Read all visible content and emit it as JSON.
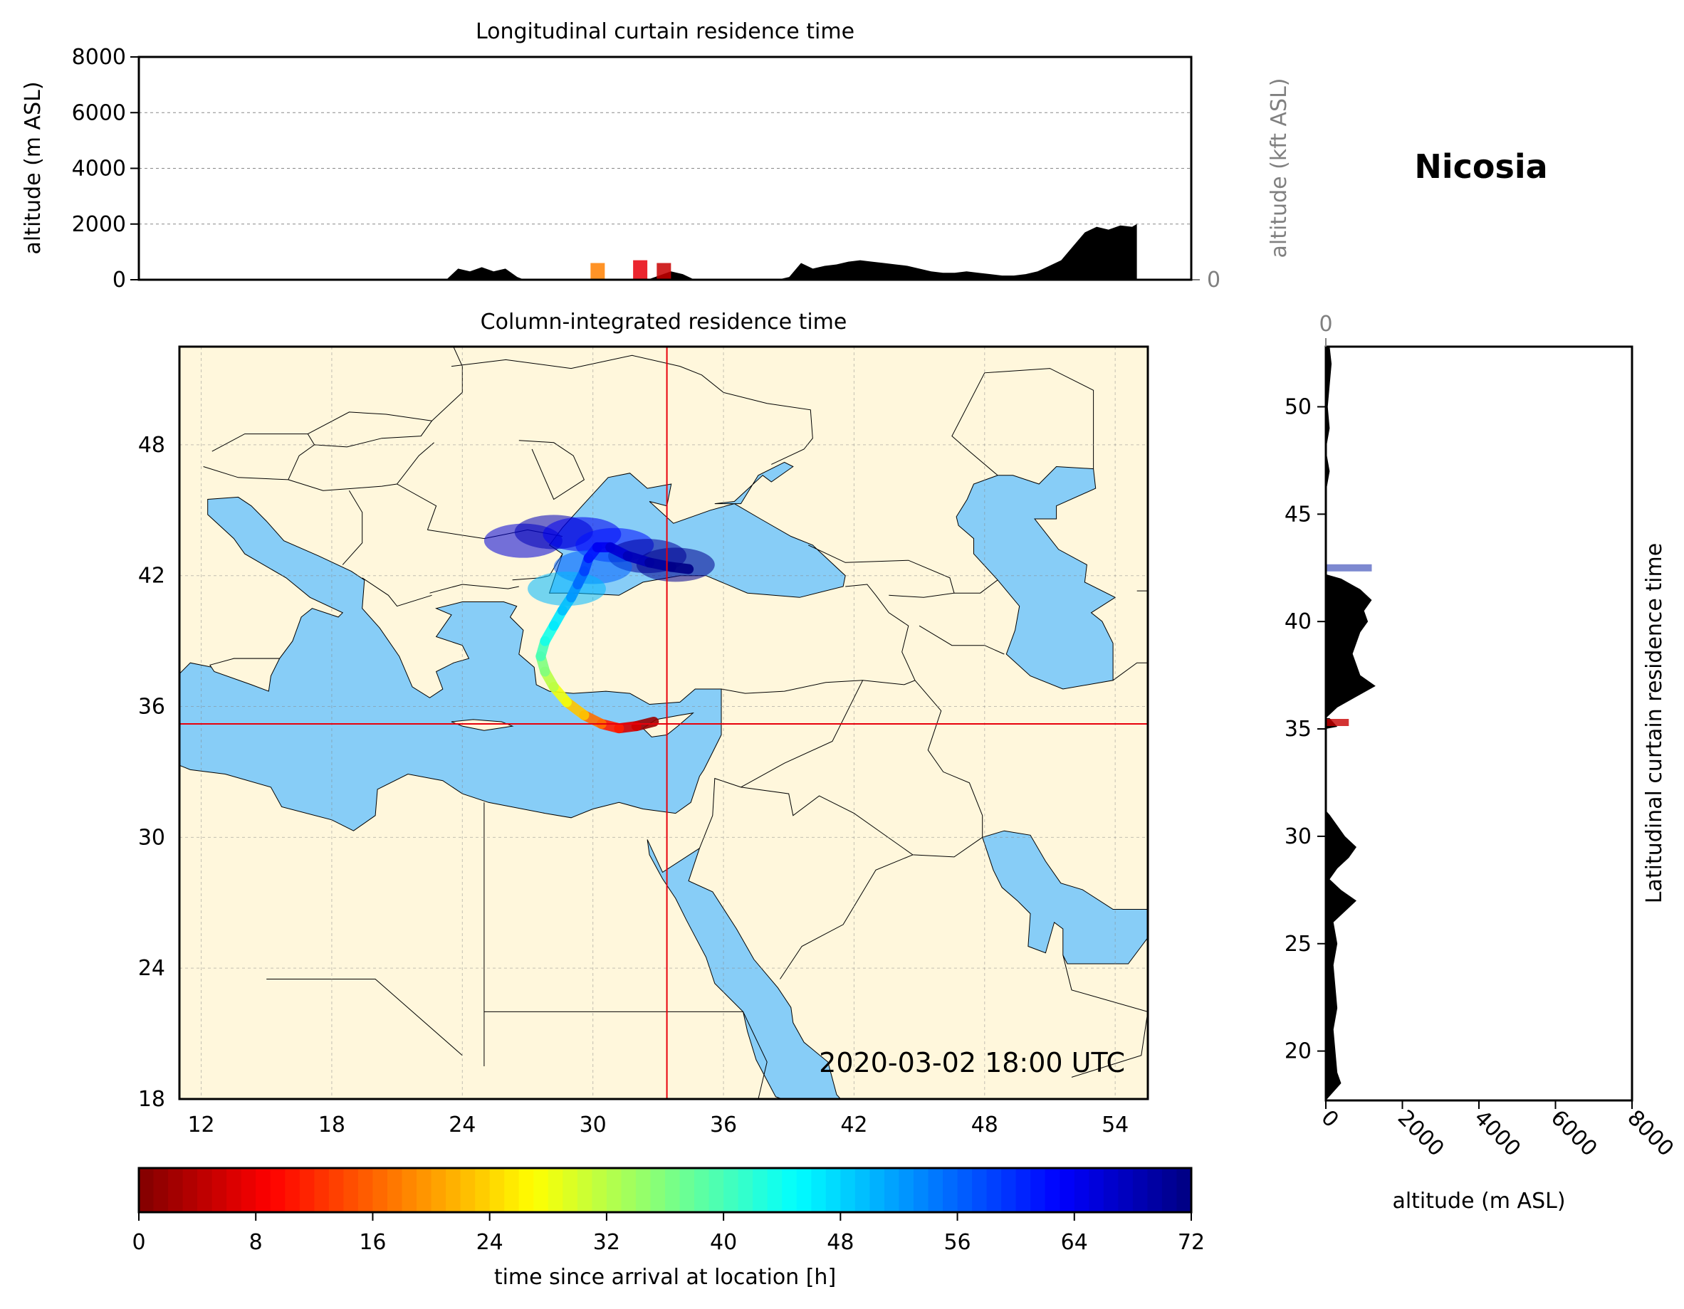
{
  "station": "Nicosia",
  "timestamp": "2020-03-02 18:00 UTC",
  "colors": {
    "land": "#fff7dc",
    "sea": "#87cdf7",
    "terrain": "#000000",
    "crosshair": "#e8000b",
    "grid": "#888888"
  },
  "location": {
    "lon": 33.4,
    "lat": 35.2
  },
  "chart_data": [
    {
      "id": "longitudinal",
      "type": "area",
      "title": "Longitudinal curtain residence time",
      "ylabel": "altitude (m ASL)",
      "ylabel_right": "altitude (kft ASL)",
      "xlim": [
        11,
        55.5
      ],
      "ylim": [
        0,
        8000
      ],
      "yticks": [
        0,
        2000,
        4000,
        6000,
        8000
      ],
      "yticks_right": [
        0,
        50,
        100
      ],
      "terrain_profile": {
        "x": [
          11,
          23,
          24,
          24.5,
          25,
          25.5,
          26,
          26.5,
          27,
          27.3,
          27.5,
          28,
          28.5,
          29,
          29.5,
          30,
          30.5,
          31,
          31.5,
          32,
          32.5,
          33,
          33.5,
          34,
          34.5,
          35,
          35.2,
          35.5,
          36,
          36.5,
          37,
          37.5,
          38,
          38.5,
          39,
          39.5,
          40,
          40.5,
          41,
          41.5,
          42,
          42.5,
          43,
          43.5,
          44,
          44.5,
          45,
          45.5,
          46,
          46.5,
          47,
          47.5,
          48,
          48.5,
          49,
          49.5,
          50,
          50.5,
          51,
          51.5,
          52,
          52.5,
          53,
          53.2,
          53.2
        ],
        "y": [
          0,
          0,
          0,
          400,
          300,
          450,
          300,
          400,
          100,
          0,
          0,
          0,
          0,
          0,
          0,
          0,
          0,
          0,
          0,
          0,
          0,
          150,
          300,
          200,
          0,
          0,
          0,
          0,
          0,
          0,
          0,
          0,
          0,
          100,
          600,
          400,
          500,
          550,
          650,
          700,
          650,
          600,
          550,
          500,
          400,
          300,
          250,
          250,
          300,
          250,
          200,
          150,
          150,
          200,
          300,
          500,
          700,
          1200,
          1700,
          1900,
          1800,
          1950,
          1900,
          2000,
          0
        ]
      },
      "residence_markers": [
        {
          "lon": 30.4,
          "height_m": 600,
          "color": "#ff8000"
        },
        {
          "lon": 32.2,
          "height_m": 700,
          "color": "#e8000b"
        },
        {
          "lon": 33.2,
          "height_m": 600,
          "color": "#c80000"
        }
      ]
    },
    {
      "id": "column",
      "type": "heatmap",
      "title": "Column-integrated residence time",
      "xlim": [
        11,
        55.5
      ],
      "ylim": [
        18,
        52.5
      ],
      "xticks": [
        12,
        18,
        24,
        30,
        36,
        42,
        48,
        54
      ],
      "yticks": [
        18,
        24,
        30,
        36,
        42,
        48
      ],
      "plume_track": {
        "lon": [
          32.8,
          32.0,
          31.2,
          30.4,
          29.6,
          28.8,
          28.2,
          27.8,
          27.6,
          27.8,
          28.2,
          28.6,
          29.0,
          29.3,
          29.6,
          29.8,
          30.2,
          30.8,
          31.6,
          32.6,
          33.6,
          34.4
        ],
        "lat": [
          35.3,
          35.1,
          35.0,
          35.2,
          35.6,
          36.2,
          36.9,
          37.6,
          38.3,
          39.0,
          39.7,
          40.4,
          41.0,
          41.6,
          42.2,
          42.8,
          43.3,
          43.3,
          42.9,
          42.6,
          42.4,
          42.3
        ],
        "hours": [
          0,
          4,
          8,
          14,
          20,
          26,
          30,
          34,
          38,
          42,
          45,
          48,
          51,
          54,
          57,
          60,
          63,
          65,
          67,
          69,
          71,
          72
        ]
      },
      "plume_cloud": [
        {
          "lon": 26.8,
          "lat": 43.6,
          "hours": 66
        },
        {
          "lon": 28.2,
          "lat": 44.0,
          "hours": 68
        },
        {
          "lon": 29.5,
          "lat": 43.9,
          "hours": 64
        },
        {
          "lon": 31.0,
          "lat": 43.4,
          "hours": 62
        },
        {
          "lon": 32.5,
          "lat": 42.9,
          "hours": 70
        },
        {
          "lon": 30.0,
          "lat": 42.4,
          "hours": 56
        },
        {
          "lon": 28.8,
          "lat": 41.4,
          "hours": 50
        },
        {
          "lon": 33.8,
          "lat": 42.5,
          "hours": 71
        }
      ]
    },
    {
      "id": "latitudinal",
      "type": "area",
      "title": "",
      "ylabel": "Latitudinal curtain residence time",
      "xlabel": "altitude (m ASL)",
      "xlim": [
        0,
        8000
      ],
      "xticks": [
        0,
        2000,
        4000,
        6000,
        8000
      ],
      "xticks_top": [
        0,
        50,
        100
      ],
      "ylim": [
        17.7,
        52.8
      ],
      "yticks": [
        20,
        25,
        30,
        35,
        40,
        45,
        50
      ],
      "terrain_profile": {
        "lat": [
          17.7,
          18.5,
          19,
          20,
          21,
          22,
          23,
          24,
          25,
          26,
          26.5,
          27,
          27.5,
          28,
          28.5,
          29,
          29.5,
          30,
          30.5,
          31,
          31.2,
          31.2,
          35,
          35.1,
          35.3,
          35.5,
          35.5,
          36,
          36.5,
          37,
          37.5,
          38,
          38.5,
          39,
          39.5,
          40,
          40.5,
          41,
          41.5,
          42,
          42.2,
          42.2,
          46,
          47,
          48,
          49,
          50,
          51,
          52,
          52.8
        ],
        "alt": [
          0,
          400,
          300,
          250,
          200,
          300,
          250,
          200,
          300,
          200,
          500,
          800,
          400,
          100,
          300,
          600,
          800,
          500,
          300,
          100,
          0,
          0,
          0,
          300,
          200,
          100,
          0,
          300,
          800,
          1300,
          900,
          800,
          700,
          800,
          900,
          1100,
          1000,
          1200,
          900,
          400,
          0,
          0,
          0,
          100,
          0,
          100,
          50,
          100,
          150,
          100
        ]
      },
      "residence_markers": [
        {
          "lat": 42.5,
          "width_m": 1200,
          "color": "#5c6cc4"
        },
        {
          "lat": 35.3,
          "width_m": 600,
          "color": "#c80000"
        }
      ]
    },
    {
      "id": "colorbar",
      "type": "colorbar",
      "label": "time since arrival at location [h]",
      "range": [
        0,
        72
      ],
      "ticks": [
        0,
        8,
        16,
        24,
        32,
        40,
        48,
        56,
        64,
        72
      ],
      "colormap": "jet_r",
      "levels": 72
    }
  ]
}
